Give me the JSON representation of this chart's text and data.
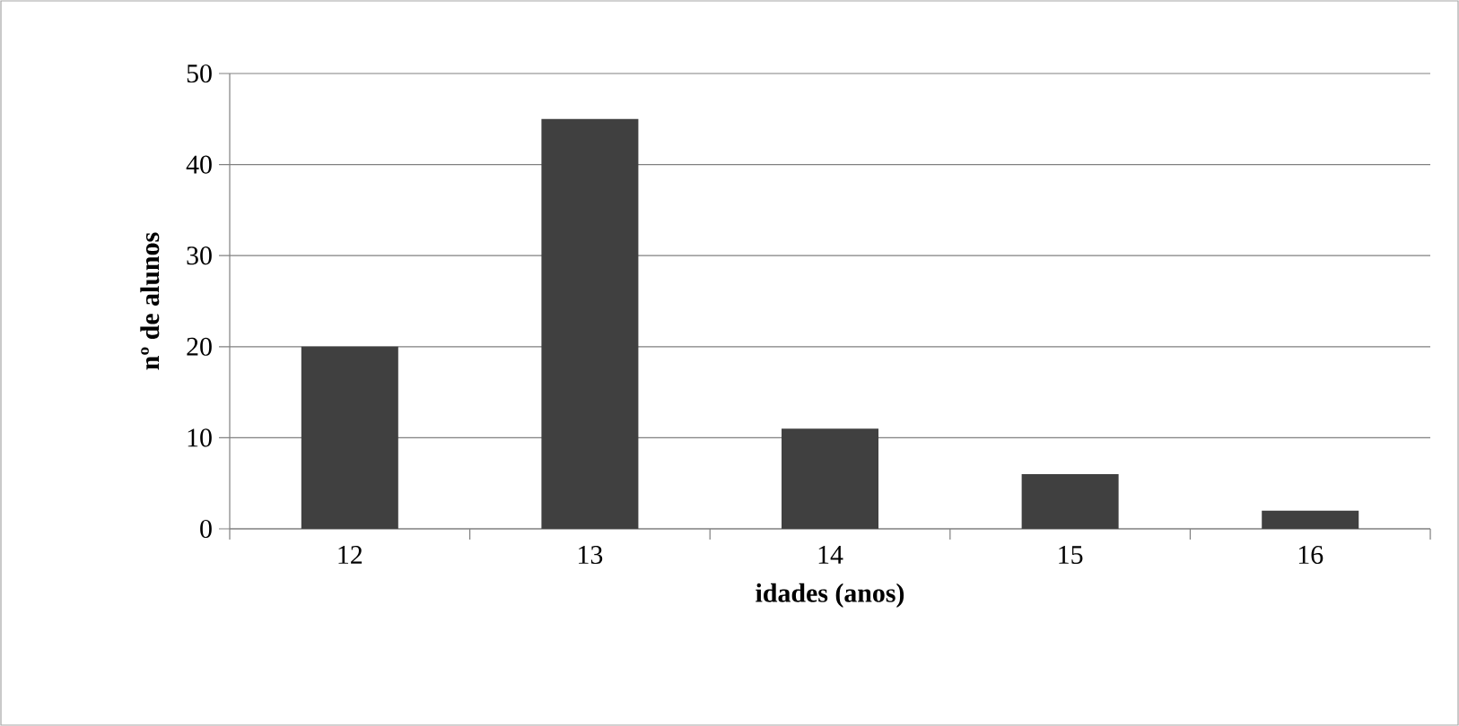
{
  "chart_data": {
    "type": "bar",
    "xlabel": "idades (anos)",
    "ylabel": "nº de alunos",
    "categories": [
      "12",
      "13",
      "14",
      "15",
      "16"
    ],
    "values": [
      20,
      45,
      11,
      6,
      2
    ],
    "color": "#404040",
    "ylim": [
      0,
      50
    ],
    "yticks": [
      0,
      10,
      20,
      30,
      40,
      50
    ],
    "grid": "y"
  }
}
